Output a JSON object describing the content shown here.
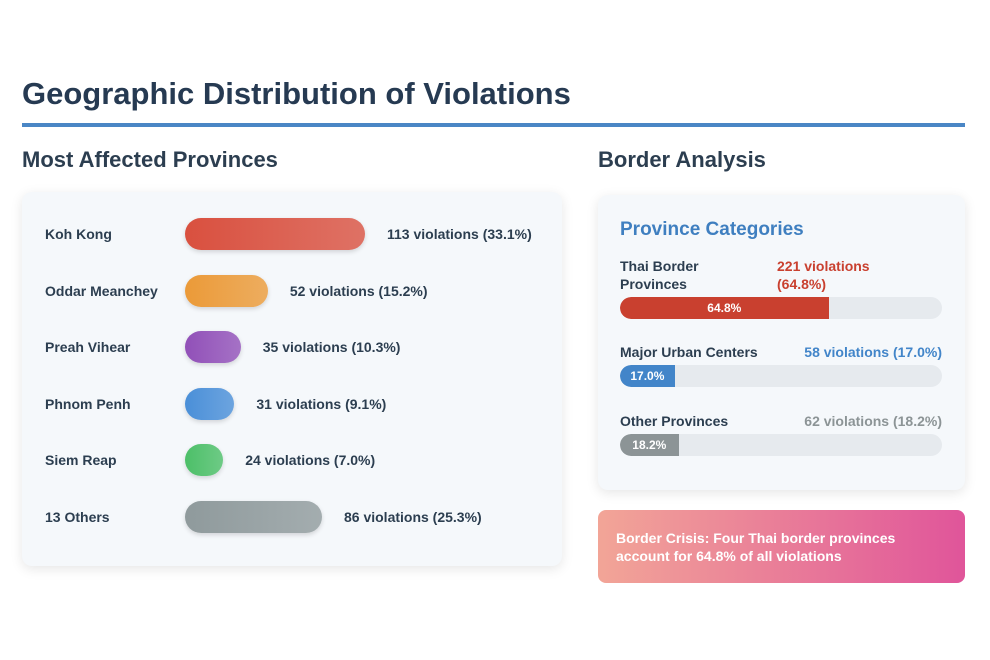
{
  "header": {
    "title": "Geographic Distribution of Violations"
  },
  "provinces": {
    "title": "Most Affected Provinces",
    "items": [
      {
        "name": "Koh Kong",
        "count": 113,
        "label": "113 violations (33.1%)",
        "color": "#d9503f"
      },
      {
        "name": "Oddar Meanchey",
        "count": 52,
        "label": "52 violations (15.2%)",
        "color": "#eb9a38"
      },
      {
        "name": "Preah Vihear",
        "count": 35,
        "label": "35 violations (10.3%)",
        "color": "#9150b8"
      },
      {
        "name": "Phnom Penh",
        "count": 31,
        "label": "31 violations (9.1%)",
        "color": "#4a8fd8"
      },
      {
        "name": "Siem Reap",
        "count": 24,
        "label": "24 violations (7.0%)",
        "color": "#4cbf68"
      },
      {
        "name": "13 Others",
        "count": 86,
        "label": "86 violations (25.3%)",
        "color": "#8f9a9c"
      }
    ]
  },
  "border": {
    "title": "Border Analysis",
    "card_title": "Province Categories",
    "categories": [
      {
        "name": "Thai Border Provinces",
        "label": "221 violations (64.8%)",
        "percent": 64.8,
        "bar_label": "64.8%",
        "color": "#c9402f"
      },
      {
        "name": "Major Urban Centers",
        "label": "58 violations (17.0%)",
        "percent": 17.0,
        "bar_label": "17.0%",
        "color": "#4285c9"
      },
      {
        "name": "Other Provinces",
        "label": "62 violations (18.2%)",
        "percent": 18.2,
        "bar_label": "18.2%",
        "color": "#8c9496"
      }
    ],
    "callout": "Border Crisis: Four Thai border provinces account for 64.8% of all violations"
  }
}
